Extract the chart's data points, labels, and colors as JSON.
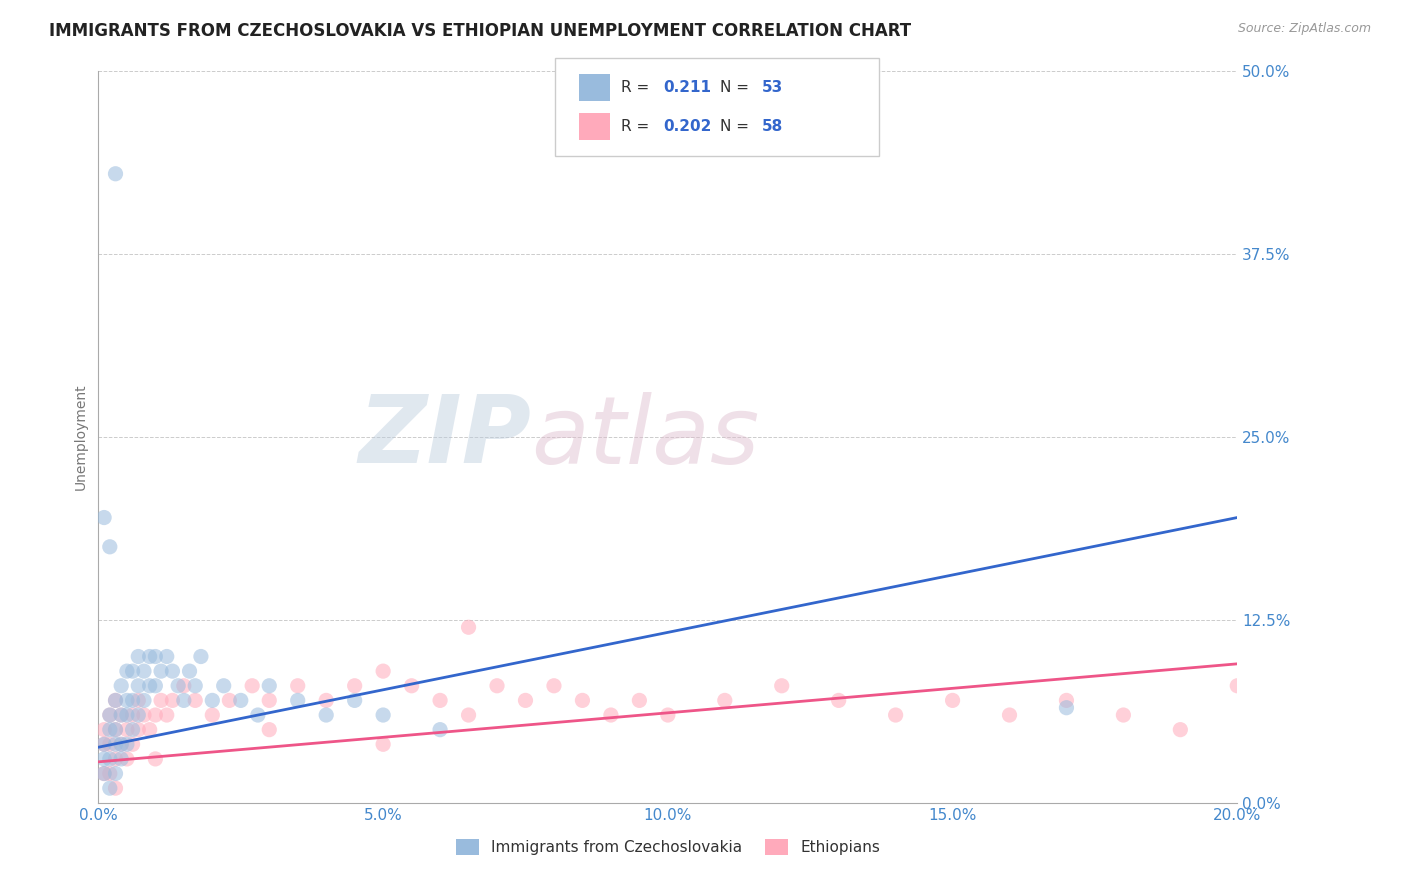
{
  "title": "IMMIGRANTS FROM CZECHOSLOVAKIA VS ETHIOPIAN UNEMPLOYMENT CORRELATION CHART",
  "source": "Source: ZipAtlas.com",
  "ylabel": "Unemployment",
  "xlim": [
    0.0,
    0.2
  ],
  "ylim": [
    0.0,
    0.5
  ],
  "xticks": [
    0.0,
    0.05,
    0.1,
    0.15,
    0.2
  ],
  "xtick_labels": [
    "0.0%",
    "5.0%",
    "10.0%",
    "15.0%",
    "20.0%"
  ],
  "yticks": [
    0.0,
    0.125,
    0.25,
    0.375,
    0.5
  ],
  "ytick_labels": [
    "0.0%",
    "12.5%",
    "25.0%",
    "37.5%",
    "50.0%"
  ],
  "blue_color": "#99BBDD",
  "pink_color": "#FFAABB",
  "blue_line_color": "#3366CC",
  "pink_line_color": "#EE5588",
  "R_blue": "0.211",
  "N_blue": "53",
  "R_pink": "0.202",
  "N_pink": "58",
  "legend_label_blue": "Immigrants from Czechoslovakia",
  "legend_label_pink": "Ethiopians",
  "watermark_zip": "ZIP",
  "watermark_atlas": "atlas",
  "title_fontsize": 12,
  "axis_label_fontsize": 10,
  "tick_fontsize": 11,
  "scatter_alpha": 0.55,
  "scatter_size": 120,
  "blue_line_x0": 0.0,
  "blue_line_y0": 0.038,
  "blue_line_x1": 0.2,
  "blue_line_y1": 0.195,
  "pink_line_x0": 0.0,
  "pink_line_y0": 0.028,
  "pink_line_x1": 0.2,
  "pink_line_y1": 0.095,
  "background_color": "#FFFFFF",
  "grid_color": "#CCCCCC",
  "tick_color": "#4488CC",
  "blue_scatter_x": [
    0.001,
    0.001,
    0.001,
    0.002,
    0.002,
    0.002,
    0.002,
    0.003,
    0.003,
    0.003,
    0.003,
    0.004,
    0.004,
    0.004,
    0.004,
    0.005,
    0.005,
    0.005,
    0.005,
    0.006,
    0.006,
    0.006,
    0.007,
    0.007,
    0.007,
    0.008,
    0.008,
    0.009,
    0.009,
    0.01,
    0.01,
    0.011,
    0.012,
    0.013,
    0.014,
    0.015,
    0.016,
    0.017,
    0.018,
    0.02,
    0.022,
    0.025,
    0.028,
    0.03,
    0.035,
    0.04,
    0.045,
    0.05,
    0.06,
    0.17,
    0.001,
    0.002,
    0.003
  ],
  "blue_scatter_y": [
    0.02,
    0.03,
    0.04,
    0.01,
    0.03,
    0.05,
    0.06,
    0.02,
    0.04,
    0.05,
    0.07,
    0.03,
    0.04,
    0.06,
    0.08,
    0.04,
    0.06,
    0.07,
    0.09,
    0.05,
    0.07,
    0.09,
    0.06,
    0.08,
    0.1,
    0.07,
    0.09,
    0.08,
    0.1,
    0.08,
    0.1,
    0.09,
    0.1,
    0.09,
    0.08,
    0.07,
    0.09,
    0.08,
    0.1,
    0.07,
    0.08,
    0.07,
    0.06,
    0.08,
    0.07,
    0.06,
    0.07,
    0.06,
    0.05,
    0.065,
    0.195,
    0.175,
    0.43
  ],
  "pink_scatter_x": [
    0.001,
    0.001,
    0.001,
    0.002,
    0.002,
    0.002,
    0.003,
    0.003,
    0.003,
    0.004,
    0.004,
    0.005,
    0.005,
    0.006,
    0.006,
    0.007,
    0.007,
    0.008,
    0.009,
    0.01,
    0.011,
    0.012,
    0.013,
    0.015,
    0.017,
    0.02,
    0.023,
    0.027,
    0.03,
    0.035,
    0.04,
    0.045,
    0.05,
    0.055,
    0.06,
    0.065,
    0.07,
    0.075,
    0.08,
    0.085,
    0.09,
    0.095,
    0.1,
    0.11,
    0.12,
    0.13,
    0.14,
    0.15,
    0.16,
    0.17,
    0.18,
    0.19,
    0.2,
    0.065,
    0.03,
    0.05,
    0.01,
    0.003
  ],
  "pink_scatter_y": [
    0.02,
    0.04,
    0.05,
    0.02,
    0.04,
    0.06,
    0.03,
    0.05,
    0.07,
    0.04,
    0.06,
    0.03,
    0.05,
    0.04,
    0.06,
    0.05,
    0.07,
    0.06,
    0.05,
    0.06,
    0.07,
    0.06,
    0.07,
    0.08,
    0.07,
    0.06,
    0.07,
    0.08,
    0.07,
    0.08,
    0.07,
    0.08,
    0.09,
    0.08,
    0.07,
    0.06,
    0.08,
    0.07,
    0.08,
    0.07,
    0.06,
    0.07,
    0.06,
    0.07,
    0.08,
    0.07,
    0.06,
    0.07,
    0.06,
    0.07,
    0.06,
    0.05,
    0.08,
    0.12,
    0.05,
    0.04,
    0.03,
    0.01
  ]
}
